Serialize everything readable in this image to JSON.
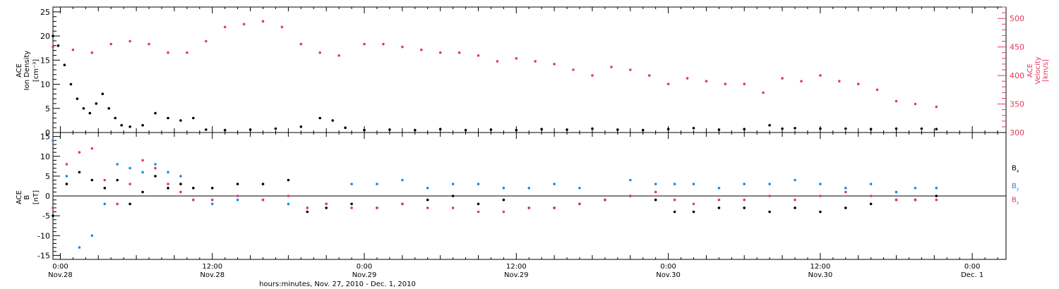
{
  "colors": {
    "density": "#000000",
    "velocity": "#e8365d",
    "bx": "#000000",
    "by": "#1f88e5",
    "bz": "#e8365d",
    "axis": "#000000"
  },
  "footer": {
    "xlabel": "hours:minutes, Nov. 27, 2010 - Dec. 1, 2010"
  },
  "x_axis": {
    "ticks": [
      {
        "time": "Nov.28 0:00",
        "top": "0:00",
        "bottom": "Nov.28"
      },
      {
        "time": "Nov.28 12:00",
        "top": "12:00",
        "bottom": "Nov.28"
      },
      {
        "time": "Nov.29 0:00",
        "top": "0:00",
        "bottom": "Nov.29"
      },
      {
        "time": "Nov.29 12:00",
        "top": "12:00",
        "bottom": "Nov.29"
      },
      {
        "time": "Nov.30 0:00",
        "top": "0:00",
        "bottom": "Nov.30"
      },
      {
        "time": "Nov.30 12:00",
        "top": "12:00",
        "bottom": "Nov.30"
      },
      {
        "time": "Dec.1 0:00",
        "top": "0:00",
        "bottom": "Dec. 1"
      }
    ]
  },
  "chart_data": [
    {
      "type": "scatter",
      "panel": "top",
      "ylabel_left": [
        "ACE",
        "Ion Density",
        "[cm⁻³]"
      ],
      "ylabel_right": [
        "ACE",
        "Velocity",
        "[km/s]"
      ],
      "xlim": [
        "Nov.27 23:25",
        "Dec.1 2:40"
      ],
      "ylim_left": [
        0,
        26
      ],
      "yticks_left": [
        0,
        5,
        10,
        15,
        20,
        25
      ],
      "ylim_right": [
        300,
        520
      ],
      "yticks_right": [
        300,
        350,
        400,
        450,
        500
      ],
      "grid": false,
      "series": [
        {
          "key": "density",
          "axis": "left",
          "x": [
            "Nov.27 23:25",
            "Nov.27 23:50",
            "Nov.28 0:20",
            "Nov.28 0:50",
            "Nov.28 1:20",
            "Nov.28 1:50",
            "Nov.28 2:20",
            "Nov.28 2:50",
            "Nov.28 3:20",
            "Nov.28 3:50",
            "Nov.28 4:20",
            "Nov.28 4:50",
            "Nov.28 5:30",
            "Nov.28 6:30",
            "Nov.28 7:30",
            "Nov.28 8:30",
            "Nov.28 9:30",
            "Nov.28 10:30",
            "Nov.28 11:30",
            "Nov.28 13:00",
            "Nov.28 15:00",
            "Nov.28 17:00",
            "Nov.28 19:00",
            "Nov.28 20:30",
            "Nov.28 21:30",
            "Nov.28 22:30",
            "Nov.29 0:00",
            "Nov.29 2:00",
            "Nov.29 4:00",
            "Nov.29 6:00",
            "Nov.29 8:00",
            "Nov.29 10:00",
            "Nov.29 12:00",
            "Nov.29 14:00",
            "Nov.29 16:00",
            "Nov.29 18:00",
            "Nov.29 20:00",
            "Nov.29 22:00",
            "Nov.30 0:00",
            "Nov.30 2:00",
            "Nov.30 4:00",
            "Nov.30 6:00",
            "Nov.30 8:00",
            "Nov.30 9:00",
            "Nov.30 10:00",
            "Nov.30 12:00",
            "Nov.30 14:00",
            "Nov.30 16:00",
            "Nov.30 18:00",
            "Nov.30 20:00",
            "Nov.30 21:10"
          ],
          "y": [
            20,
            18,
            14,
            10,
            7,
            5,
            4,
            6,
            8,
            5,
            3,
            1.5,
            1.2,
            1.5,
            4,
            3,
            2.5,
            3,
            0.6,
            0.5,
            0.6,
            0.8,
            1.2,
            3,
            2.5,
            1,
            0.5,
            0.6,
            0.5,
            0.7,
            0.5,
            0.6,
            0.5,
            0.7,
            0.6,
            0.8,
            0.6,
            0.5,
            0.7,
            0.9,
            0.6,
            0.7,
            1.5,
            0.8,
            0.9,
            0.8,
            0.8,
            0.7,
            0.8,
            0.8,
            0.7
          ]
        },
        {
          "key": "velocity",
          "axis": "right",
          "x": [
            "Nov.27 23:25",
            "Nov.28 1:00",
            "Nov.28 2:30",
            "Nov.28 4:00",
            "Nov.28 5:30",
            "Nov.28 7:00",
            "Nov.28 8:30",
            "Nov.28 10:00",
            "Nov.28 11:30",
            "Nov.28 13:00",
            "Nov.28 14:30",
            "Nov.28 16:00",
            "Nov.28 17:30",
            "Nov.28 19:00",
            "Nov.28 20:30",
            "Nov.28 22:00",
            "Nov.29 0:00",
            "Nov.29 1:30",
            "Nov.29 3:00",
            "Nov.29 4:30",
            "Nov.29 6:00",
            "Nov.29 7:30",
            "Nov.29 9:00",
            "Nov.29 10:30",
            "Nov.29 12:00",
            "Nov.29 13:30",
            "Nov.29 15:00",
            "Nov.29 16:30",
            "Nov.29 18:00",
            "Nov.29 19:30",
            "Nov.29 21:00",
            "Nov.29 22:30",
            "Nov.30 0:00",
            "Nov.30 1:30",
            "Nov.30 3:00",
            "Nov.30 4:30",
            "Nov.30 6:00",
            "Nov.30 7:30",
            "Nov.30 9:00",
            "Nov.30 10:30",
            "Nov.30 12:00",
            "Nov.30 13:30",
            "Nov.30 15:00",
            "Nov.30 16:30",
            "Nov.30 18:00",
            "Nov.30 19:30",
            "Nov.30 21:10"
          ],
          "y": [
            450,
            445,
            440,
            455,
            460,
            455,
            440,
            440,
            460,
            485,
            490,
            495,
            485,
            455,
            440,
            435,
            455,
            455,
            450,
            445,
            440,
            440,
            435,
            425,
            430,
            425,
            420,
            410,
            400,
            415,
            410,
            400,
            385,
            395,
            390,
            385,
            385,
            370,
            395,
            390,
            400,
            390,
            385,
            375,
            355,
            350,
            345
          ]
        }
      ]
    },
    {
      "type": "scatter",
      "panel": "bottom",
      "ylabel_left": [
        "ACE",
        "B",
        "[nT]"
      ],
      "xlim": [
        "Nov.27 23:25",
        "Dec.1 2:40"
      ],
      "ylim": [
        -16,
        16
      ],
      "yticks": [
        -15,
        -10,
        -5,
        0,
        5,
        10,
        15
      ],
      "grid": false,
      "zero_line": true,
      "series": [
        {
          "key": "bx",
          "name": "B",
          "sub": "x",
          "x": [
            "Nov.27 23:25",
            "Nov.28 0:30",
            "Nov.28 1:30",
            "Nov.28 2:30",
            "Nov.28 3:30",
            "Nov.28 4:30",
            "Nov.28 5:30",
            "Nov.28 6:30",
            "Nov.28 7:30",
            "Nov.28 8:30",
            "Nov.28 9:30",
            "Nov.28 10:30",
            "Nov.28 12:00",
            "Nov.28 14:00",
            "Nov.28 16:00",
            "Nov.28 18:00",
            "Nov.28 19:30",
            "Nov.28 21:00",
            "Nov.28 23:00",
            "Nov.29 1:00",
            "Nov.29 3:00",
            "Nov.29 5:00",
            "Nov.29 7:00",
            "Nov.29 9:00",
            "Nov.29 11:00",
            "Nov.29 13:00",
            "Nov.29 15:00",
            "Nov.29 17:00",
            "Nov.29 19:00",
            "Nov.29 21:00",
            "Nov.29 23:00",
            "Nov.30 0:30",
            "Nov.30 2:00",
            "Nov.30 4:00",
            "Nov.30 6:00",
            "Nov.30 8:00",
            "Nov.30 10:00",
            "Nov.30 12:00",
            "Nov.30 14:00",
            "Nov.30 16:00",
            "Nov.30 18:00",
            "Nov.30 19:30",
            "Nov.30 21:10"
          ],
          "y": [
            -5,
            3,
            6,
            4,
            2,
            4,
            -2,
            1,
            5,
            2,
            3,
            2,
            2,
            3,
            3,
            4,
            -4,
            -3,
            -2,
            -3,
            -2,
            -1,
            0,
            -2,
            -1,
            -3,
            -3,
            -2,
            -1,
            0,
            -1,
            -4,
            -4,
            -3,
            -3,
            -4,
            -3,
            -4,
            -3,
            -2,
            -1,
            -1,
            0
          ]
        },
        {
          "key": "by",
          "name": "B",
          "sub": "y",
          "x": [
            "Nov.27 23:25",
            "Nov.28 0:30",
            "Nov.28 1:30",
            "Nov.28 2:30",
            "Nov.28 3:30",
            "Nov.28 4:30",
            "Nov.28 5:30",
            "Nov.28 6:30",
            "Nov.28 7:30",
            "Nov.28 8:30",
            "Nov.28 9:30",
            "Nov.28 10:30",
            "Nov.28 12:00",
            "Nov.28 14:00",
            "Nov.28 16:00",
            "Nov.28 18:00",
            "Nov.28 19:30",
            "Nov.28 21:00",
            "Nov.28 23:00",
            "Nov.29 1:00",
            "Nov.29 3:00",
            "Nov.29 5:00",
            "Nov.29 7:00",
            "Nov.29 9:00",
            "Nov.29 11:00",
            "Nov.29 13:00",
            "Nov.29 15:00",
            "Nov.29 17:00",
            "Nov.29 19:00",
            "Nov.29 21:00",
            "Nov.29 23:00",
            "Nov.30 0:30",
            "Nov.30 2:00",
            "Nov.30 4:00",
            "Nov.30 6:00",
            "Nov.30 8:00",
            "Nov.30 10:00",
            "Nov.30 12:00",
            "Nov.30 14:00",
            "Nov.30 16:00",
            "Nov.30 18:00",
            "Nov.30 19:30",
            "Nov.30 21:10"
          ],
          "y": [
            14,
            5,
            -13,
            -10,
            -2,
            8,
            7,
            6,
            8,
            6,
            5,
            -1,
            -2,
            -1,
            -1,
            -2,
            -3,
            -2,
            3,
            3,
            4,
            2,
            3,
            3,
            2,
            2,
            3,
            2,
            -1,
            4,
            3,
            3,
            3,
            2,
            3,
            3,
            4,
            3,
            2,
            3,
            1,
            2,
            2
          ]
        },
        {
          "key": "bz",
          "name": "B",
          "sub": "z",
          "x": [
            "Nov.27 23:25",
            "Nov.28 0:30",
            "Nov.28 1:30",
            "Nov.28 2:30",
            "Nov.28 3:30",
            "Nov.28 4:30",
            "Nov.28 5:30",
            "Nov.28 6:30",
            "Nov.28 7:30",
            "Nov.28 8:30",
            "Nov.28 9:30",
            "Nov.28 10:30",
            "Nov.28 12:00",
            "Nov.28 14:00",
            "Nov.28 16:00",
            "Nov.28 18:00",
            "Nov.28 19:30",
            "Nov.28 21:00",
            "Nov.28 23:00",
            "Nov.29 1:00",
            "Nov.29 3:00",
            "Nov.29 5:00",
            "Nov.29 7:00",
            "Nov.29 9:00",
            "Nov.29 11:00",
            "Nov.29 13:00",
            "Nov.29 15:00",
            "Nov.29 17:00",
            "Nov.29 19:00",
            "Nov.29 21:00",
            "Nov.29 23:00",
            "Nov.30 0:30",
            "Nov.30 2:00",
            "Nov.30 4:00",
            "Nov.30 6:00",
            "Nov.30 8:00",
            "Nov.30 10:00",
            "Nov.30 12:00",
            "Nov.30 14:00",
            "Nov.30 16:00",
            "Nov.30 18:00",
            "Nov.30 19:30",
            "Nov.30 21:10"
          ],
          "y": [
            -3,
            8,
            11,
            12,
            4,
            -2,
            3,
            9,
            7,
            3,
            1,
            -1,
            -1,
            0,
            -1,
            0,
            -3,
            -2,
            -3,
            -3,
            -2,
            -3,
            -3,
            -4,
            -4,
            -3,
            -3,
            -2,
            -1,
            0,
            1,
            -1,
            -2,
            -1,
            -1,
            0,
            -1,
            0,
            1,
            0,
            -1,
            -1,
            -1
          ]
        }
      ]
    }
  ]
}
